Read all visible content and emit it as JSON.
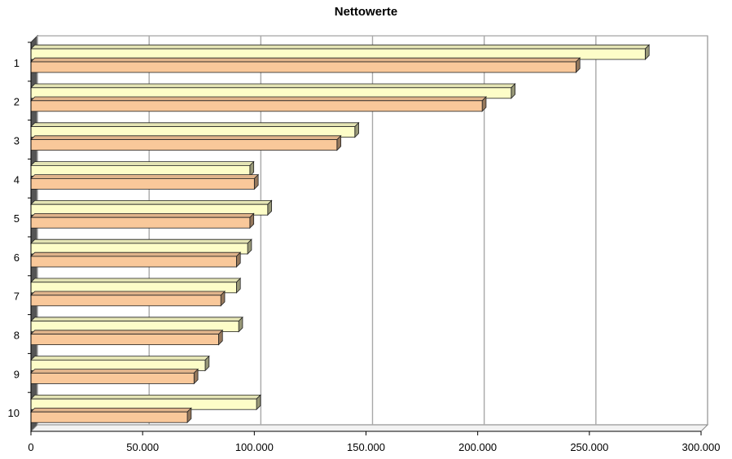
{
  "chart_data": {
    "type": "bar",
    "orientation": "horizontal",
    "title": "Nettowerte",
    "categories": [
      "1",
      "2",
      "3",
      "4",
      "5",
      "6",
      "7",
      "8",
      "9",
      "10"
    ],
    "series": [
      {
        "values": [
          275000,
          215000,
          145000,
          98000,
          106000,
          97000,
          92000,
          93000,
          78000,
          101000
        ],
        "color": "#fdfdc8"
      },
      {
        "values": [
          244000,
          202000,
          137000,
          100000,
          98000,
          92000,
          85000,
          84000,
          73000,
          70000
        ],
        "color": "#f9c89a"
      }
    ],
    "x_ticks": [
      "0",
      "50.000",
      "100.000",
      "150.000",
      "200.000",
      "250.000",
      "300.000"
    ],
    "xlim": [
      0,
      300000
    ],
    "grid": true,
    "legend": "none",
    "style": "3d"
  }
}
